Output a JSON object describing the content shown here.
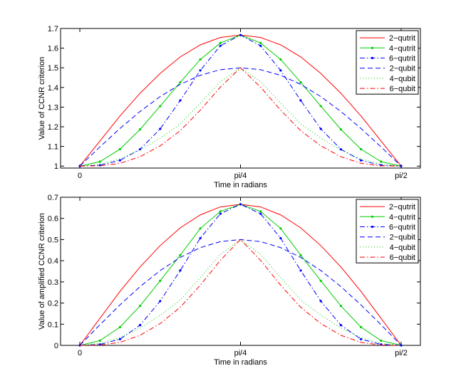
{
  "chart_data": [
    {
      "type": "line",
      "ylabel": "Value of CCNR criterion",
      "xlabel": "Time in radians",
      "xlim": [
        -0.0942,
        1.665
      ],
      "ylim": [
        0.99,
        1.7
      ],
      "xticks": [
        0,
        0.7854,
        1.5708
      ],
      "xtick_labels": [
        "0",
        "pi/4",
        "pi/2"
      ],
      "yticks": [
        1,
        1.1,
        1.2,
        1.3,
        1.4,
        1.5,
        1.6,
        1.7
      ],
      "ytick_labels": [
        "1",
        "1.1",
        "1.2",
        "1.3",
        "1.4",
        "1.5",
        "1.6",
        "1.7"
      ],
      "x": [
        0,
        0.0982,
        0.1963,
        0.2945,
        0.3927,
        0.4909,
        0.589,
        0.6872,
        0.7854,
        0.8836,
        0.9817,
        1.0799,
        1.1781,
        1.2763,
        1.3744,
        1.4726,
        1.5708
      ],
      "series": [
        {
          "name": "2−qutrit",
          "values": [
            1.0,
            1.1275,
            1.2551,
            1.3705,
            1.4714,
            1.5554,
            1.6167,
            1.6543,
            1.6667,
            1.6543,
            1.6167,
            1.5554,
            1.4714,
            1.3705,
            1.2551,
            1.1275,
            1.0
          ]
        },
        {
          "name": "4−qutrit",
          "values": [
            1.0,
            1.0225,
            1.0862,
            1.1865,
            1.305,
            1.4262,
            1.5426,
            1.6264,
            1.6667,
            1.6264,
            1.5426,
            1.4262,
            1.305,
            1.1865,
            1.0862,
            1.0225,
            1.0
          ]
        },
        {
          "name": "6−qutrit",
          "values": [
            1.0,
            1.0045,
            1.0292,
            1.0854,
            1.1891,
            1.3337,
            1.4867,
            1.612,
            1.6667,
            1.612,
            1.4867,
            1.3337,
            1.1891,
            1.0854,
            1.0292,
            1.0045,
            1.0
          ]
        },
        {
          "name": "2−qubit",
          "values": [
            1.0,
            1.0975,
            1.1913,
            1.2778,
            1.3535,
            1.4157,
            1.4619,
            1.4904,
            1.5,
            1.4904,
            1.4619,
            1.4157,
            1.3535,
            1.2778,
            1.1913,
            1.0975,
            1.0
          ]
        },
        {
          "name": "4−qubit",
          "values": [
            1.0,
            1.0095,
            1.0367,
            1.0816,
            1.1427,
            1.2139,
            1.321,
            1.43,
            1.5,
            1.43,
            1.321,
            1.2139,
            1.1427,
            1.0816,
            1.0367,
            1.0095,
            1.0
          ]
        },
        {
          "name": "6−qubit",
          "values": [
            1.0,
            1.0015,
            1.014,
            1.0476,
            1.103,
            1.18,
            1.2845,
            1.402,
            1.5,
            1.402,
            1.2845,
            1.18,
            1.103,
            1.0476,
            1.014,
            1.0015,
            1.0
          ]
        }
      ]
    },
    {
      "type": "line",
      "ylabel": "Value of amplified CCNR criterion",
      "xlabel": "Time in radians",
      "xlim": [
        -0.0942,
        1.665
      ],
      "ylim": [
        0,
        0.7
      ],
      "xticks": [
        0,
        0.7854,
        1.5708
      ],
      "xtick_labels": [
        "0",
        "pi/4",
        "pi/2"
      ],
      "yticks": [
        0,
        0.1,
        0.2,
        0.3,
        0.4,
        0.5,
        0.6,
        0.7
      ],
      "ytick_labels": [
        "0",
        "0.1",
        "0.2",
        "0.3",
        "0.4",
        "0.5",
        "0.6",
        "0.7"
      ],
      "x": [
        0,
        0.0982,
        0.1963,
        0.2945,
        0.3927,
        0.4909,
        0.589,
        0.6872,
        0.7854,
        0.8836,
        0.9817,
        1.0799,
        1.1781,
        1.2763,
        1.3744,
        1.4726,
        1.5708
      ],
      "series": [
        {
          "name": "2−qutrit",
          "values": [
            0.0,
            0.1275,
            0.2551,
            0.3705,
            0.4714,
            0.5554,
            0.6167,
            0.6543,
            0.6667,
            0.6543,
            0.6167,
            0.5554,
            0.4714,
            0.3705,
            0.2551,
            0.1275,
            0.0
          ]
        },
        {
          "name": "4−qutrit",
          "values": [
            0.0,
            0.0225,
            0.0862,
            0.1865,
            0.305,
            0.4262,
            0.5526,
            0.633,
            0.6667,
            0.633,
            0.5526,
            0.4262,
            0.305,
            0.1865,
            0.0862,
            0.0225,
            0.0
          ]
        },
        {
          "name": "6−qutrit",
          "values": [
            0.0,
            0.0045,
            0.0292,
            0.0954,
            0.2091,
            0.3537,
            0.5067,
            0.622,
            0.6667,
            0.622,
            0.5067,
            0.3537,
            0.2091,
            0.0954,
            0.0292,
            0.0045,
            0.0
          ]
        },
        {
          "name": "2−qubit",
          "values": [
            0.0,
            0.0975,
            0.1913,
            0.2778,
            0.3535,
            0.4157,
            0.4619,
            0.4904,
            0.5,
            0.4904,
            0.4619,
            0.4157,
            0.3535,
            0.2778,
            0.1913,
            0.0975,
            0.0
          ]
        },
        {
          "name": "4−qubit",
          "values": [
            0.0,
            0.0095,
            0.0367,
            0.0816,
            0.1427,
            0.2139,
            0.321,
            0.43,
            0.5,
            0.43,
            0.321,
            0.2139,
            0.1427,
            0.0816,
            0.0367,
            0.0095,
            0.0
          ]
        },
        {
          "name": "6−qubit",
          "values": [
            0.0,
            0.0015,
            0.014,
            0.0476,
            0.103,
            0.18,
            0.2845,
            0.402,
            0.5,
            0.402,
            0.2845,
            0.18,
            0.103,
            0.0476,
            0.014,
            0.0015,
            0.0
          ]
        }
      ]
    }
  ],
  "series_styles": [
    {
      "color": "#ff0000",
      "dash": "",
      "marker": "none"
    },
    {
      "color": "#00cc00",
      "dash": "",
      "marker": "dot"
    },
    {
      "color": "#0000ff",
      "dash": "7 3 1.5 3",
      "marker": "dot"
    },
    {
      "color": "#0000ff",
      "dash": "7 4",
      "marker": "none"
    },
    {
      "color": "#00cc00",
      "dash": "1 3",
      "marker": "none"
    },
    {
      "color": "#ff0000",
      "dash": "7 3 1.5 3",
      "marker": "none"
    }
  ]
}
